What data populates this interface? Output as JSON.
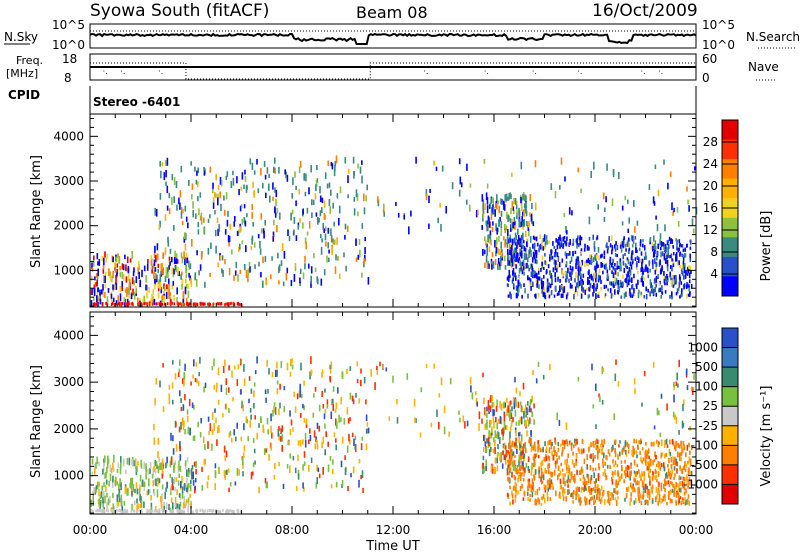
{
  "header": {
    "station": "Syowa South (fitACF)",
    "beam": "Beam 08",
    "date": "16/Oct/2009"
  },
  "top_panels": {
    "nsky_label": "N.Sky",
    "nsky_ticks": [
      "10^5",
      "10^0"
    ],
    "nsearch_label": "N.Search",
    "nsearch_ticks": [
      "10^5",
      "10^0"
    ],
    "freq_label_1": "Freq.",
    "freq_label_2": "[MHz]",
    "freq_ticks": [
      "18",
      "8"
    ],
    "nave_label": "Nave",
    "nave_ticks": [
      "60",
      "0"
    ],
    "cpid_label": "CPID",
    "cpid_value": "Stereo -6401"
  },
  "colorbars": {
    "power": {
      "label": "Power [dB]",
      "ticks": [
        "28",
        "24",
        "20",
        "16",
        "12",
        "8",
        "4"
      ],
      "colors": [
        "#0000ff",
        "#2a50c8",
        "#3a8a80",
        "#8cc040",
        "#f0d020",
        "#ffb000",
        "#ff7f00",
        "#ff3000",
        "#e00000"
      ]
    },
    "velocity": {
      "label": "Velocity [m s⁻¹]",
      "ticks": [
        "1000",
        "500",
        "100",
        "25",
        "-25",
        "-100",
        "-500",
        "-1000"
      ],
      "colors": [
        "#2a50c8",
        "#3a7ac0",
        "#3a8a70",
        "#7ac040",
        "#c8c8c8",
        "#ffb000",
        "#ff7f00",
        "#ff3000",
        "#e00000"
      ]
    }
  },
  "chart_data": [
    {
      "type": "heatmap",
      "title": "",
      "quantity": "Power",
      "xlabel": "",
      "ylabel": "Slant Range [km]",
      "x_tick_labels": [
        "00:00",
        "04:00",
        "08:00",
        "12:00",
        "16:00",
        "20:00",
        "00:00"
      ],
      "y_ticks": [
        1000,
        2000,
        3000,
        4000
      ],
      "xlim": [
        0,
        24
      ],
      "ylim": [
        180,
        4500
      ],
      "colorbar_range": [
        0,
        30
      ],
      "scatter_regions": [
        {
          "t": [
            0.0,
            4.0
          ],
          "r": [
            180,
            1300
          ],
          "density": "dense"
        },
        {
          "t": [
            2.5,
            11.0
          ],
          "r": [
            600,
            3400
          ],
          "density": "sparse"
        },
        {
          "t": [
            15.5,
            17.5
          ],
          "r": [
            1000,
            3400
          ],
          "density": "medium"
        },
        {
          "t": [
            16.5,
            23.8
          ],
          "r": [
            350,
            1700
          ],
          "density": "dense"
        }
      ]
    },
    {
      "type": "heatmap",
      "title": "",
      "quantity": "Velocity",
      "xlabel": "Time UT",
      "ylabel": "Slant Range [km]",
      "x_tick_labels": [
        "00:00",
        "04:00",
        "08:00",
        "12:00",
        "16:00",
        "20:00",
        "00:00"
      ],
      "y_ticks": [
        1000,
        2000,
        3000,
        4000
      ],
      "xlim": [
        0,
        24
      ],
      "ylim": [
        180,
        4500
      ],
      "colorbar_range": [
        -1200,
        1200
      ]
    }
  ]
}
